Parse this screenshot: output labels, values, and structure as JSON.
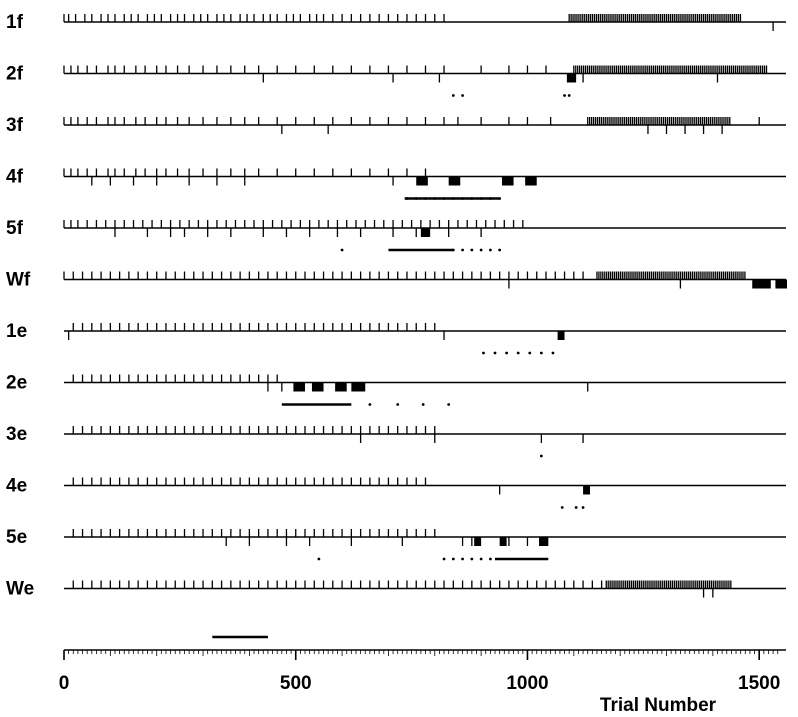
{
  "chart_data": {
    "type": "raster",
    "xlabel": "Trial Number",
    "xlim": [
      0,
      1530
    ],
    "x_ticks": [
      0,
      500,
      1000,
      1500
    ],
    "rows": [
      {
        "label": "1f",
        "up": [
          0,
          10,
          25,
          45,
          60,
          80,
          95,
          110,
          130,
          145,
          160,
          180,
          195,
          210,
          230,
          245,
          260,
          280,
          295,
          310,
          330,
          345,
          360,
          380,
          395,
          410,
          430,
          445,
          460,
          480,
          495,
          510,
          530,
          545,
          560,
          580,
          600,
          620,
          640,
          660,
          680,
          700,
          720,
          740,
          760,
          780,
          800,
          820
        ],
        "down": [
          1530
        ],
        "dense": [
          [
            1090,
            1460
          ]
        ],
        "blocks": [],
        "bar": [],
        "dots": []
      },
      {
        "label": "2f",
        "up": [
          0,
          15,
          30,
          50,
          70,
          95,
          110,
          130,
          155,
          175,
          200,
          220,
          245,
          270,
          300,
          330,
          360,
          390,
          420,
          460,
          500,
          540,
          580,
          620,
          660,
          700,
          740,
          780,
          820,
          900,
          960,
          1000,
          1040
        ],
        "down": [
          430,
          710,
          810,
          1090,
          1120,
          1410
        ],
        "dense": [
          [
            1100,
            1520
          ]
        ],
        "blocks": [
          [
            1085,
            1105
          ]
        ],
        "bar": [],
        "dots": [
          840,
          860,
          1080,
          1090
        ]
      },
      {
        "label": "3f",
        "up": [
          0,
          15,
          30,
          50,
          70,
          95,
          110,
          130,
          155,
          175,
          200,
          220,
          245,
          270,
          300,
          330,
          360,
          390,
          420,
          460,
          500,
          540,
          580,
          620,
          660,
          700,
          740,
          780,
          820,
          850,
          900,
          960,
          1000,
          1050,
          1500
        ],
        "down": [
          470,
          570,
          1260,
          1300,
          1340,
          1380,
          1420
        ],
        "dense": [
          [
            1130,
            1440
          ]
        ],
        "blocks": [],
        "bar": [],
        "dots": []
      },
      {
        "label": "4f",
        "up": [
          0,
          15,
          30,
          50,
          70,
          95,
          110,
          130,
          155,
          175,
          200,
          220,
          245,
          270,
          300,
          330,
          360,
          390,
          420,
          460,
          500,
          540,
          580,
          620,
          660,
          700,
          740,
          780
        ],
        "down": [
          60,
          100,
          150,
          200,
          270,
          330,
          390,
          710
        ],
        "dense": [],
        "blocks": [
          [
            760,
            785
          ],
          [
            830,
            855
          ],
          [
            945,
            970
          ],
          [
            995,
            1020
          ]
        ],
        "bar": [
          [
            735,
            940
          ]
        ],
        "dots": [
          740,
          760,
          780,
          800,
          820,
          840,
          860,
          880,
          900,
          920,
          940
        ]
      },
      {
        "label": "5f",
        "up": [
          0,
          15,
          30,
          50,
          70,
          90,
          110,
          130,
          150,
          170,
          190,
          210,
          230,
          250,
          270,
          290,
          310,
          330,
          350,
          370,
          390,
          410,
          430,
          450,
          470,
          490,
          510,
          530,
          550,
          570,
          590,
          610,
          630,
          650,
          670,
          690,
          710,
          730,
          750,
          770,
          790,
          810,
          830,
          850,
          870,
          890,
          910,
          930,
          950,
          970,
          990
        ],
        "down": [
          110,
          180,
          230,
          260,
          310,
          360,
          430,
          480,
          530,
          590,
          640,
          710,
          760,
          830,
          900
        ],
        "dense": [],
        "blocks": [
          [
            770,
            790
          ]
        ],
        "bar": [
          [
            700,
            840
          ]
        ],
        "dots": [
          600,
          840,
          860,
          880,
          900,
          920,
          940
        ]
      },
      {
        "label": "Wf",
        "up": [
          0,
          20,
          40,
          60,
          80,
          100,
          120,
          140,
          160,
          180,
          200,
          220,
          240,
          260,
          280,
          300,
          320,
          340,
          360,
          380,
          400,
          420,
          440,
          460,
          480,
          500,
          520,
          540,
          560,
          580,
          600,
          620,
          640,
          660,
          680,
          700,
          720,
          740,
          760,
          780,
          800,
          820,
          840,
          860,
          880,
          900,
          920,
          940,
          960,
          980,
          1000,
          1020,
          1040,
          1060,
          1080,
          1100,
          1120
        ],
        "down": [
          960,
          1330
        ],
        "dense": [
          [
            1150,
            1470
          ]
        ],
        "blocks": [
          [
            1485,
            1525
          ],
          [
            1535,
            1560
          ]
        ],
        "bar": [],
        "dots": []
      },
      {
        "label": "1e",
        "up": [
          20,
          40,
          60,
          80,
          100,
          120,
          140,
          160,
          180,
          200,
          220,
          240,
          260,
          280,
          300,
          320,
          340,
          360,
          380,
          400,
          420,
          440,
          460,
          480,
          500,
          520,
          540,
          560,
          580,
          600,
          620,
          640,
          660,
          680,
          700,
          720,
          740,
          760,
          780,
          800
        ],
        "down": [
          10,
          820
        ],
        "dense": [],
        "blocks": [
          [
            1065,
            1080
          ]
        ],
        "bar": [],
        "dots": [
          905,
          930,
          955,
          980,
          1005,
          1030,
          1055
        ]
      },
      {
        "label": "2e",
        "up": [
          20,
          40,
          60,
          80,
          100,
          120,
          140,
          160,
          180,
          200,
          220,
          240,
          260,
          280,
          300,
          320,
          340,
          360,
          380,
          400,
          420,
          440,
          460
        ],
        "down": [
          440,
          470,
          1130
        ],
        "dense": [],
        "blocks": [
          [
            495,
            520
          ],
          [
            535,
            560
          ],
          [
            585,
            610
          ],
          [
            620,
            650
          ]
        ],
        "bar": [
          [
            470,
            620
          ]
        ],
        "dots": [
          660,
          720,
          775,
          830
        ]
      },
      {
        "label": "3e",
        "up": [
          20,
          40,
          60,
          80,
          100,
          120,
          140,
          160,
          180,
          200,
          220,
          240,
          260,
          280,
          300,
          320,
          340,
          360,
          380,
          400,
          420,
          440,
          460,
          480,
          500,
          520,
          540,
          560,
          580,
          600,
          620,
          640,
          660,
          680,
          700,
          720,
          740,
          760,
          780,
          800
        ],
        "down": [
          640,
          800,
          1030,
          1120
        ],
        "dense": [],
        "blocks": [],
        "bar": [],
        "dots": [
          1030
        ]
      },
      {
        "label": "4e",
        "up": [
          20,
          40,
          60,
          80,
          100,
          120,
          140,
          160,
          180,
          200,
          220,
          240,
          260,
          280,
          300,
          320,
          340,
          360,
          380,
          400,
          420,
          440,
          460,
          480,
          500,
          520,
          540,
          560,
          580,
          600,
          620,
          640,
          660,
          680,
          700,
          720,
          740,
          760,
          780
        ],
        "down": [
          940
        ],
        "dense": [],
        "blocks": [
          [
            1120,
            1135
          ]
        ],
        "bar": [],
        "dots": [
          1075,
          1105,
          1120
        ]
      },
      {
        "label": "5e",
        "up": [
          20,
          40,
          60,
          80,
          100,
          120,
          140,
          160,
          180,
          200,
          220,
          240,
          260,
          280,
          300,
          320,
          340,
          360,
          380,
          400,
          420,
          440,
          460,
          480,
          500,
          520,
          540,
          560,
          580,
          600,
          620,
          640,
          660,
          680,
          700,
          720,
          740,
          760,
          780,
          800
        ],
        "down": [
          350,
          400,
          480,
          530,
          620,
          730,
          860,
          880,
          960,
          1000
        ],
        "dense": [],
        "blocks": [
          [
            885,
            900
          ],
          [
            940,
            955
          ],
          [
            1025,
            1045
          ]
        ],
        "bar": [
          [
            930,
            1045
          ]
        ],
        "dots": [
          550,
          820,
          840,
          860,
          880,
          900,
          920
        ]
      },
      {
        "label": "We",
        "up": [
          20,
          40,
          60,
          80,
          100,
          120,
          140,
          160,
          180,
          200,
          220,
          240,
          260,
          280,
          300,
          320,
          340,
          360,
          380,
          400,
          420,
          440,
          460,
          480,
          500,
          520,
          540,
          560,
          580,
          600,
          620,
          640,
          660,
          680,
          700,
          720,
          740,
          760,
          780,
          800,
          820,
          840,
          860,
          880,
          900,
          920,
          940,
          960,
          980,
          1000,
          1020,
          1040,
          1060,
          1080,
          1100,
          1120,
          1140,
          1160
        ],
        "down": [
          1380,
          1400
        ],
        "dense": [
          [
            1170,
            1440
          ]
        ],
        "blocks": [],
        "bar": [],
        "dots": []
      }
    ],
    "scale_bar": [
      320,
      440
    ]
  }
}
